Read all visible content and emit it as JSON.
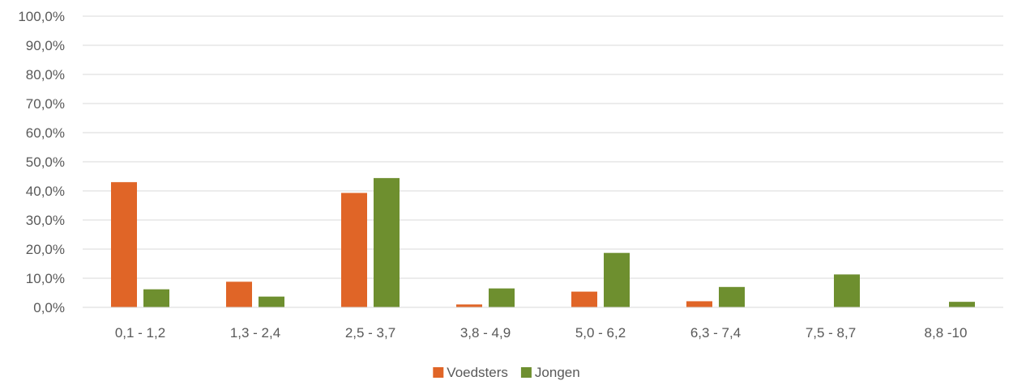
{
  "chart_data": {
    "type": "bar",
    "categories": [
      "0,1 - 1,2",
      "1,3 - 2,4",
      "2,5 - 3,7",
      "3,8 - 4,9",
      "5,0 - 6,2",
      "6,3 - 7,4",
      "7,5 - 8,7",
      "8,8 -10"
    ],
    "series": [
      {
        "name": "Voedsters",
        "color": "#e06527",
        "values": [
          43.0,
          8.8,
          39.3,
          1.0,
          5.4,
          2.1,
          0.0,
          0.0
        ]
      },
      {
        "name": "Jongen",
        "color": "#6e8f2f",
        "values": [
          6.2,
          3.7,
          44.4,
          6.5,
          18.7,
          7.0,
          11.3,
          1.9
        ]
      }
    ],
    "ylim": [
      0,
      100
    ],
    "yticks": [
      0,
      10,
      20,
      30,
      40,
      50,
      60,
      70,
      80,
      90,
      100
    ],
    "ytick_labels": [
      "0,0%",
      "10,0%",
      "20,0%",
      "30,0%",
      "40,0%",
      "50,0%",
      "60,0%",
      "70,0%",
      "80,0%",
      "90,0%",
      "100,0%"
    ],
    "title": "",
    "xlabel": "",
    "ylabel": "",
    "grid": "horizontal",
    "legend_position": "bottom-center"
  }
}
